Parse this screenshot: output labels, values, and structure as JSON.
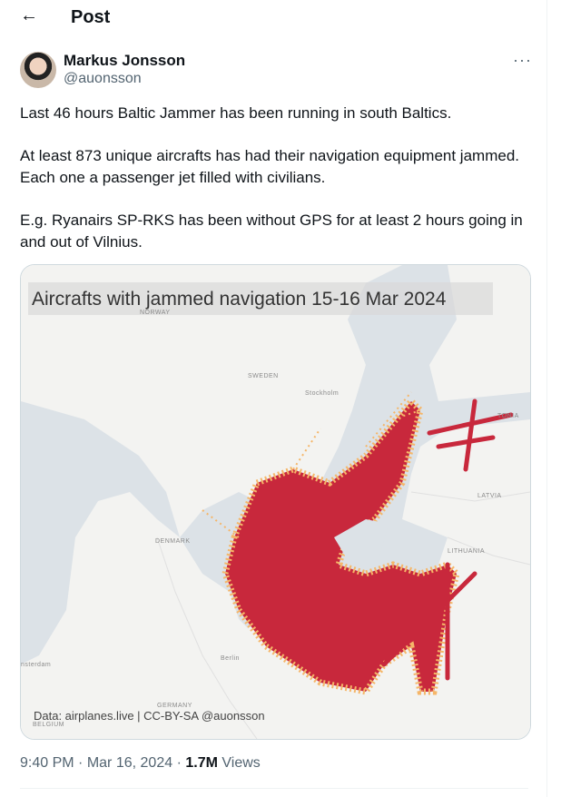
{
  "header": {
    "title": "Post"
  },
  "author": {
    "name": "Markus Jonsson",
    "handle": "@auonsson"
  },
  "post": {
    "paragraphs": [
      "Last 46 hours Baltic Jammer has been running in south Baltics.",
      "At least 873 unique aircrafts has had their navigation equipment jammed. Each one a passenger jet filled with civilians.",
      "E.g. Ryanairs SP-RKS has been without GPS for at least 2 hours going in and out of Vilnius."
    ]
  },
  "image": {
    "title": "Aircrafts with jammed navigation 15-16 Mar 2024",
    "credit": "Data: airplanes.live | CC-BY-SA @auonsson",
    "places": [
      "NORWAY",
      "SWEDEN",
      "Stockholm",
      "DENMARK",
      "Berlin",
      "nsterdam",
      "GERMANY",
      "BELGIUM",
      "LITHUANIA",
      "LATVIA",
      "TONIA"
    ]
  },
  "footer": {
    "time": "9:40 PM",
    "separator": "·",
    "date": "Mar 16, 2024",
    "views_count": "1.7M",
    "views_label": "Views"
  }
}
